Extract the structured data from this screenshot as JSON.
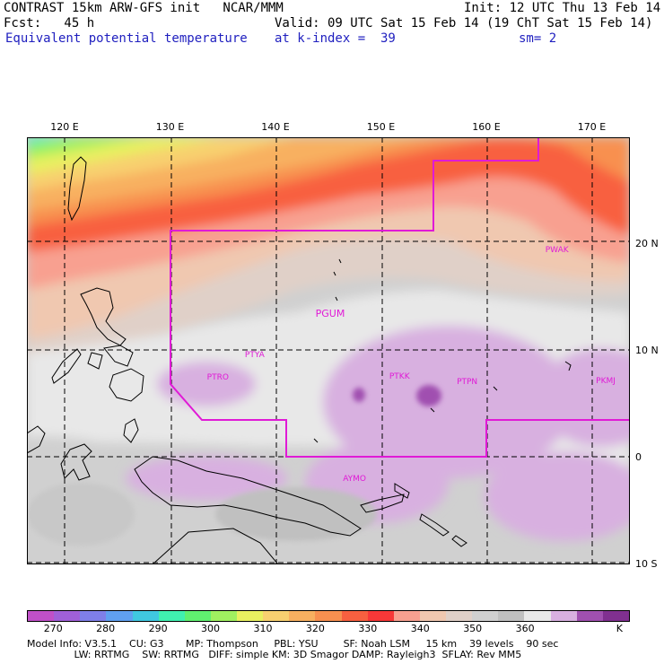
{
  "header": {
    "line1_left": "CONTRAST 15km ARW-GFS init   NCAR/MMM",
    "line1_right": "Init: 12 UTC Thu 13 Feb 14",
    "line2_left": "Fcst:   45 h",
    "line2_right": "Valid: 09 UTC Sat 15 Feb 14 (19 ChT Sat 15 Feb 14)",
    "line3_left": "Equivalent potential temperature",
    "line3_mid": "at k-index =  39",
    "line3_right": "sm= 2"
  },
  "map": {
    "lon_labels": [
      {
        "text": "120 E",
        "lon": 120
      },
      {
        "text": "130 E",
        "lon": 130
      },
      {
        "text": "140 E",
        "lon": 140
      },
      {
        "text": "150 E",
        "lon": 150
      },
      {
        "text": "160 E",
        "lon": 160
      },
      {
        "text": "170 E",
        "lon": 170
      }
    ],
    "lat_labels": [
      {
        "text": "20 N",
        "lat": 20
      },
      {
        "text": "10 N",
        "lat": 10
      },
      {
        "text": "0",
        "lat": 0
      },
      {
        "text": "10 S",
        "lat": -10
      }
    ],
    "stations": [
      {
        "name": "PWAK",
        "lon": 166.6,
        "lat": 19.3
      },
      {
        "name": "PGUM",
        "lon": 144.8,
        "lat": 13.5
      },
      {
        "name": "PTYA",
        "lon": 138.1,
        "lat": 9.5
      },
      {
        "name": "PTRO",
        "lon": 134.5,
        "lat": 7.4
      },
      {
        "name": "PTKK",
        "lon": 151.8,
        "lat": 7.5
      },
      {
        "name": "PTPN",
        "lon": 158.2,
        "lat": 7.0
      },
      {
        "name": "PKMJ",
        "lon": 171.4,
        "lat": 7.1
      },
      {
        "name": "AYMO",
        "lon": 147.4,
        "lat": -2.1
      }
    ]
  },
  "colorbar": {
    "colors": [
      "#c050c8",
      "#a060d8",
      "#7f7fe8",
      "#60a0f0",
      "#40c8e0",
      "#40f0b0",
      "#60f070",
      "#a0f060",
      "#e8f060",
      "#f8d070",
      "#f8b060",
      "#f89050",
      "#f86040",
      "#f83838",
      "#f8a090",
      "#f0c8b0",
      "#e0d0c8",
      "#d0d0d0",
      "#c0c0c0",
      "#e8e8e8",
      "#d8b0e0",
      "#a050b0",
      "#803090"
    ],
    "tick_labels": [
      {
        "text": "270",
        "pos": 1
      },
      {
        "text": "280",
        "pos": 3
      },
      {
        "text": "290",
        "pos": 5
      },
      {
        "text": "300",
        "pos": 7
      },
      {
        "text": "310",
        "pos": 9
      },
      {
        "text": "320",
        "pos": 11
      },
      {
        "text": "330",
        "pos": 13
      },
      {
        "text": "340",
        "pos": 15
      },
      {
        "text": "350",
        "pos": 17
      },
      {
        "text": "360",
        "pos": 19
      },
      {
        "text": "K",
        "pos": 22.6
      }
    ]
  },
  "footer": {
    "line1": "Model Info: V3.5.1    CU: G3       MP: Thompson     PBL: YSU        SF: Noah LSM     15 km    39 levels    90 sec",
    "line2": "               LW: RRTMG    SW: RRTMG   DIFF: simple KM: 3D Smagor DAMP: Rayleigh3  SFLAY: Rev MM5"
  }
}
